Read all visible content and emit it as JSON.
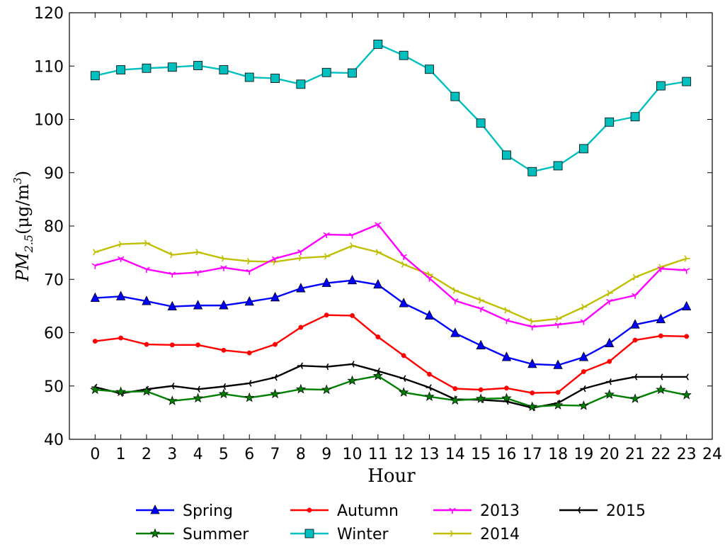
{
  "chart_data": {
    "type": "line",
    "title": "",
    "xlabel": "Hour",
    "ylabel": {
      "main": "PM",
      "sub": "2.5",
      "unit_open": "(μg/m",
      "unit_exp": "3",
      "unit_close": ")"
    },
    "xlim": [
      -1,
      24
    ],
    "ylim": [
      40,
      120
    ],
    "xticks": [
      0,
      1,
      2,
      3,
      4,
      5,
      6,
      7,
      8,
      9,
      10,
      11,
      12,
      13,
      14,
      15,
      16,
      17,
      18,
      19,
      20,
      21,
      22,
      23,
      24
    ],
    "yticks": [
      40,
      50,
      60,
      70,
      80,
      90,
      100,
      110,
      120
    ],
    "x": [
      0,
      1,
      2,
      3,
      4,
      5,
      6,
      7,
      8,
      9,
      10,
      11,
      12,
      13,
      14,
      15,
      16,
      17,
      18,
      19,
      20,
      21,
      22,
      23
    ],
    "legend_position": "bottom",
    "series": [
      {
        "name": "Spring",
        "color": "#0000ff",
        "marker": "triangle",
        "values": [
          66.5,
          66.8,
          65.9,
          64.9,
          65.1,
          65.1,
          65.8,
          66.6,
          68.3,
          69.3,
          69.8,
          69.0,
          65.5,
          63.2,
          59.9,
          57.6,
          55.4,
          54.1,
          53.9,
          55.4,
          58.0,
          61.5,
          62.5,
          64.9
        ]
      },
      {
        "name": "Summer",
        "color": "#008000",
        "marker": "star",
        "values": [
          49.3,
          48.9,
          49.0,
          47.2,
          47.7,
          48.5,
          47.8,
          48.5,
          49.4,
          49.3,
          51.0,
          51.9,
          48.8,
          48.0,
          47.3,
          47.6,
          47.7,
          46.1,
          46.4,
          46.3,
          48.4,
          47.6,
          49.3,
          48.3
        ]
      },
      {
        "name": "Autumn",
        "color": "#ff0000",
        "marker": "dot",
        "values": [
          58.4,
          59.0,
          57.8,
          57.7,
          57.7,
          56.7,
          56.2,
          57.8,
          61.0,
          63.3,
          63.2,
          59.2,
          55.7,
          52.2,
          49.5,
          49.3,
          49.6,
          48.7,
          48.8,
          52.7,
          54.6,
          58.6,
          59.4,
          59.3
        ]
      },
      {
        "name": "Winter",
        "color": "#00bfbf",
        "marker": "square",
        "values": [
          108.2,
          109.3,
          109.6,
          109.8,
          110.1,
          109.3,
          107.9,
          107.7,
          106.6,
          108.8,
          108.7,
          114.1,
          112.0,
          109.4,
          104.3,
          99.3,
          93.3,
          90.2,
          91.3,
          94.5,
          99.5,
          100.5,
          106.3,
          107.1
        ]
      },
      {
        "name": "2013",
        "color": "#ff00ff",
        "marker": "tri_down",
        "values": [
          72.6,
          73.9,
          71.9,
          71.0,
          71.3,
          72.2,
          71.5,
          73.9,
          75.2,
          78.4,
          78.3,
          80.3,
          74.3,
          70.2,
          66.0,
          64.5,
          62.3,
          61.1,
          61.5,
          62.1,
          65.9,
          67.0,
          72.0,
          71.7
        ]
      },
      {
        "name": "2014",
        "color": "#bfbf00",
        "marker": "tri_left",
        "values": [
          75.1,
          76.6,
          76.8,
          74.6,
          75.1,
          73.9,
          73.4,
          73.3,
          74.0,
          74.3,
          76.3,
          75.1,
          72.8,
          70.9,
          67.9,
          66.1,
          64.2,
          62.1,
          62.6,
          64.8,
          67.4,
          70.4,
          72.3,
          73.9
        ]
      },
      {
        "name": "2015",
        "color": "#000000",
        "marker": "tri_right",
        "values": [
          49.8,
          48.6,
          49.4,
          50.0,
          49.4,
          49.9,
          50.5,
          51.6,
          53.8,
          53.6,
          54.1,
          52.8,
          51.4,
          49.7,
          47.5,
          47.4,
          47.1,
          45.9,
          46.8,
          49.5,
          50.8,
          51.7,
          51.7,
          51.7
        ]
      }
    ],
    "legend_order": [
      "Spring",
      "Autumn",
      "2013",
      "2015",
      "Summer",
      "Winter",
      "2014"
    ]
  }
}
